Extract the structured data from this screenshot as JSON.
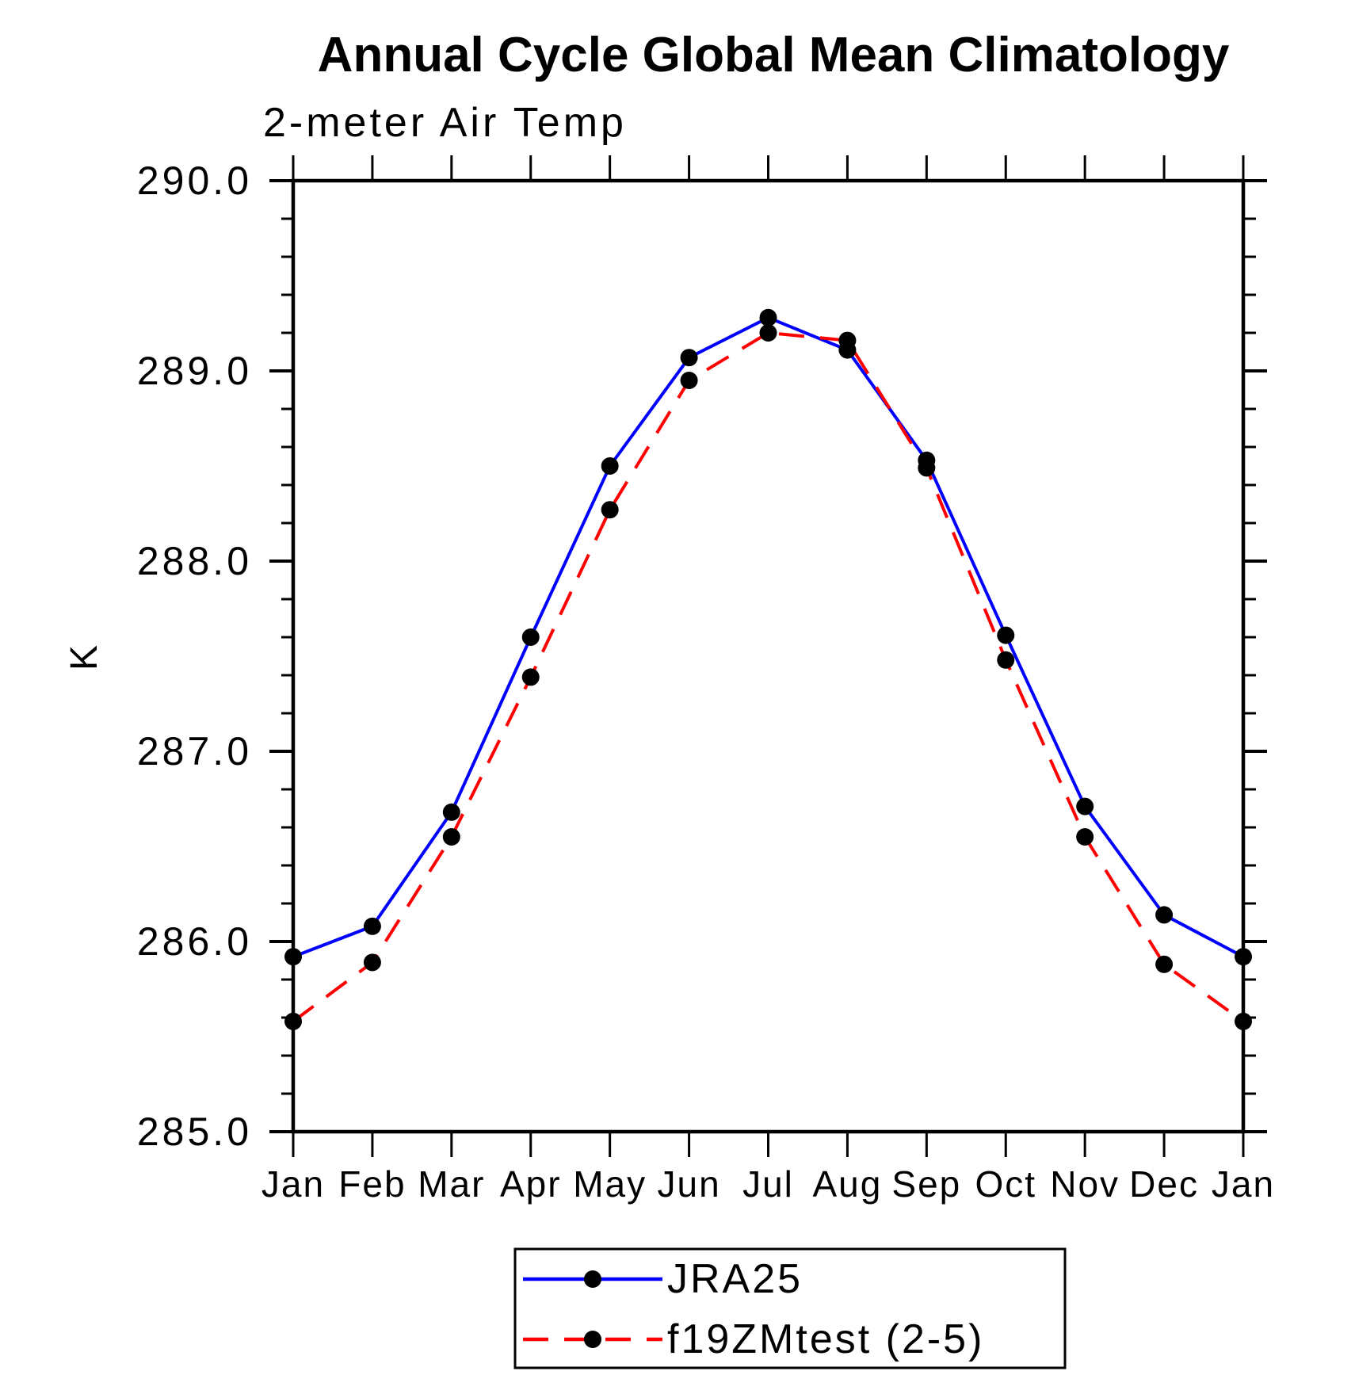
{
  "page": {
    "background": "#ffffff"
  },
  "chart_data": {
    "type": "line",
    "title": "Annual Cycle Global Mean Climatology",
    "subtitle": "2-meter Air Temp",
    "ylabel": "K",
    "xlabel": "",
    "x_categories": [
      "Jan",
      "Feb",
      "Mar",
      "Apr",
      "May",
      "Jun",
      "Jul",
      "Aug",
      "Sep",
      "Oct",
      "Nov",
      "Dec",
      "Jan"
    ],
    "ylim": [
      285.0,
      290.0
    ],
    "y_major_ticks": [
      285.0,
      286.0,
      287.0,
      288.0,
      289.0,
      290.0
    ],
    "y_major_tick_labels": [
      "285.0",
      "286.0",
      "287.0",
      "288.0",
      "289.0",
      "290.0"
    ],
    "y_minor_step": 0.2,
    "grid": false,
    "legend_position": "bottom-center",
    "axis_color": "#000000",
    "marker_color": "#000000",
    "series": [
      {
        "name": "JRA25",
        "color": "#0000ff",
        "line_style": "solid",
        "marker": "filled-circle",
        "values": [
          285.92,
          286.08,
          286.68,
          287.6,
          288.5,
          289.07,
          289.28,
          289.11,
          288.53,
          287.61,
          286.71,
          286.14,
          285.92
        ]
      },
      {
        "name": "f19ZMtest (2-5)",
        "color": "#ff0000",
        "line_style": "dashed",
        "marker": "filled-circle",
        "values": [
          285.58,
          285.89,
          286.55,
          287.39,
          288.27,
          288.95,
          289.2,
          289.16,
          288.49,
          287.48,
          286.55,
          285.88,
          285.58
        ]
      }
    ]
  }
}
